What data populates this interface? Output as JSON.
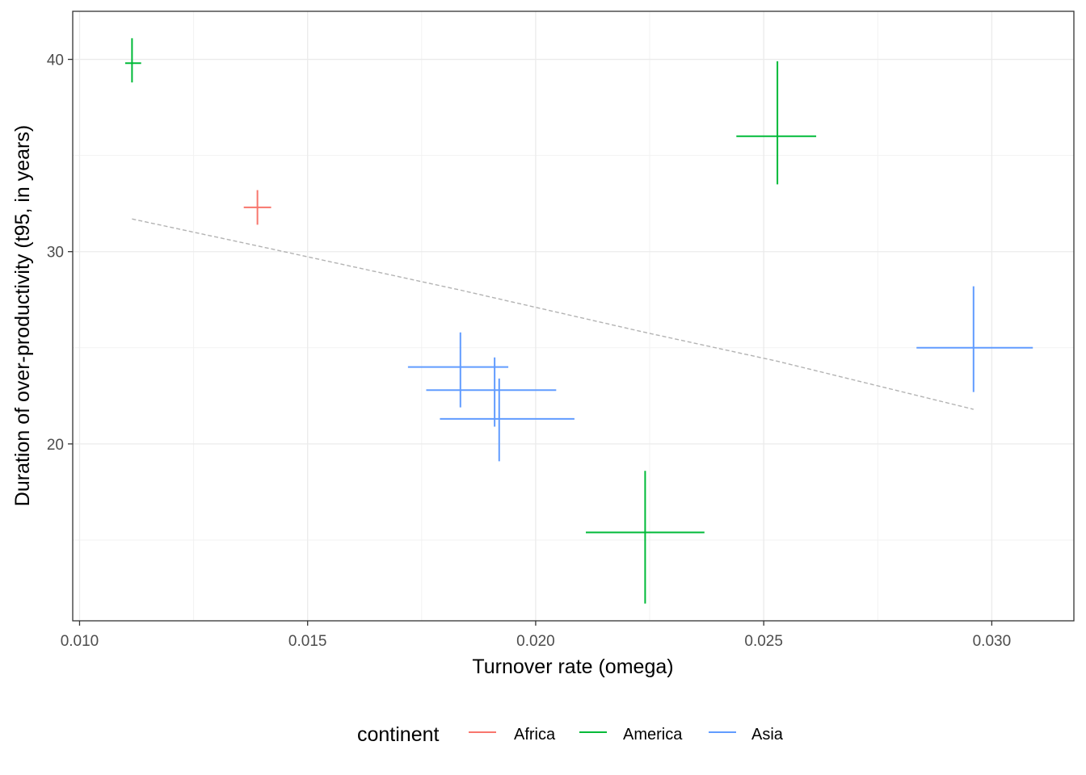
{
  "chart_data": {
    "type": "scatter",
    "title": "",
    "xlabel": "Turnover rate (omega)",
    "ylabel": "Duration of over-productivity (t95, in years)",
    "xlim": [
      0.00985,
      0.0318
    ],
    "ylim": [
      10.8,
      42.5
    ],
    "x_ticks": [
      0.01,
      0.015,
      0.02,
      0.025,
      0.03
    ],
    "x_tick_labels": [
      "0.010",
      "0.015",
      "0.020",
      "0.025",
      "0.030"
    ],
    "y_ticks": [
      20,
      30,
      40
    ],
    "y_tick_labels": [
      "20",
      "30",
      "40"
    ],
    "grid": true,
    "legend": {
      "title": "continent",
      "position": "bottom",
      "entries": [
        {
          "name": "Africa",
          "color": "#F8766D"
        },
        {
          "name": "America",
          "color": "#00BA38"
        },
        {
          "name": "Asia",
          "color": "#619CFF"
        }
      ]
    },
    "points": [
      {
        "continent": "America",
        "x": 0.01115,
        "y": 39.8,
        "xmin": 0.011,
        "xmax": 0.01135,
        "ymin": 38.8,
        "ymax": 41.1
      },
      {
        "continent": "Africa",
        "x": 0.0139,
        "y": 32.3,
        "xmin": 0.0136,
        "xmax": 0.0142,
        "ymin": 31.4,
        "ymax": 33.2
      },
      {
        "continent": "America",
        "x": 0.0253,
        "y": 36.0,
        "xmin": 0.0244,
        "xmax": 0.02615,
        "ymin": 33.5,
        "ymax": 39.9
      },
      {
        "continent": "America",
        "x": 0.0224,
        "y": 15.4,
        "xmin": 0.0211,
        "xmax": 0.0237,
        "ymin": 11.7,
        "ymax": 18.6
      },
      {
        "continent": "Asia",
        "x": 0.01835,
        "y": 24.0,
        "xmin": 0.0172,
        "xmax": 0.0194,
        "ymin": 21.9,
        "ymax": 25.8
      },
      {
        "continent": "Asia",
        "x": 0.0191,
        "y": 22.8,
        "xmin": 0.0176,
        "xmax": 0.02045,
        "ymin": 20.9,
        "ymax": 24.5
      },
      {
        "continent": "Asia",
        "x": 0.0192,
        "y": 21.3,
        "xmin": 0.0179,
        "xmax": 0.02085,
        "ymin": 19.1,
        "ymax": 23.4
      },
      {
        "continent": "Asia",
        "x": 0.0296,
        "y": 25.0,
        "xmin": 0.02835,
        "xmax": 0.0309,
        "ymin": 22.7,
        "ymax": 28.2
      }
    ],
    "trend_line": {
      "style": "dashed",
      "color": "#b3b3b3",
      "x": [
        0.01115,
        0.0139,
        0.01835,
        0.0224,
        0.0253,
        0.0296
      ],
      "y": [
        31.7,
        30.3,
        28.0,
        25.8,
        24.3,
        21.8
      ]
    }
  }
}
